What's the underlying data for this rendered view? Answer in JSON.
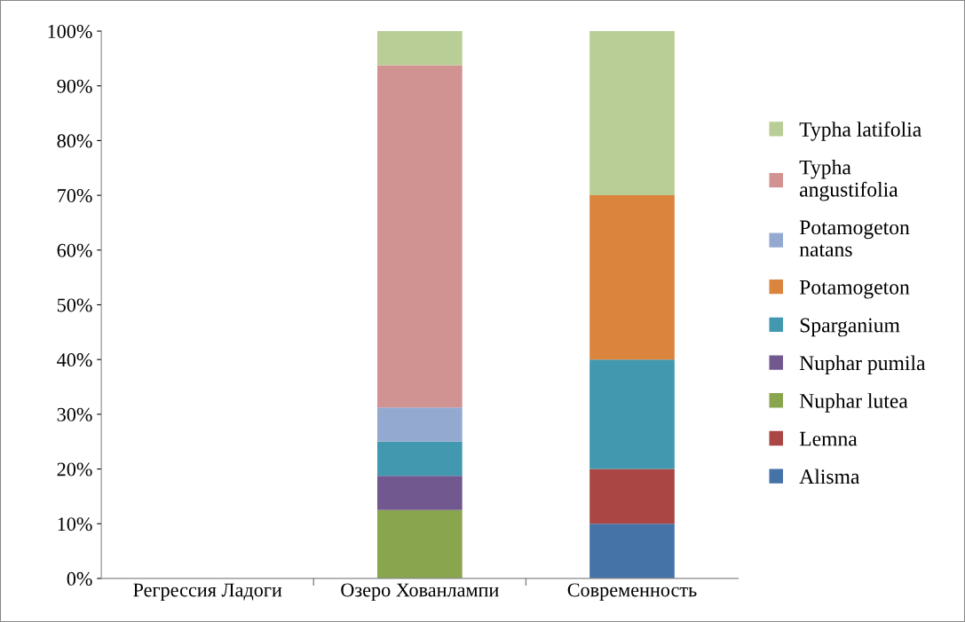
{
  "chart_data": {
    "type": "bar",
    "stacked": true,
    "categories": [
      "Регрессия Ладоги",
      "Озеро Хованлампи",
      "Современность"
    ],
    "series": [
      {
        "name": "Alisma",
        "color": "#4572a7",
        "values": [
          0,
          0,
          10
        ]
      },
      {
        "name": "Lemna",
        "color": "#aa4643",
        "values": [
          0,
          0,
          10
        ]
      },
      {
        "name": "Nuphar lutea",
        "color": "#89a54e",
        "values": [
          0,
          12.5,
          0
        ]
      },
      {
        "name": "Nuphar pumila",
        "color": "#71588f",
        "values": [
          0,
          6.25,
          0
        ]
      },
      {
        "name": "Sparganium",
        "color": "#4198af",
        "values": [
          0,
          6.25,
          20
        ]
      },
      {
        "name": "Potamogeton",
        "color": "#db843d",
        "values": [
          0,
          0,
          30
        ]
      },
      {
        "name": "Potamogeton natans",
        "color": "#93a9cf",
        "values": [
          0,
          6.25,
          0
        ]
      },
      {
        "name": "Typha angustifolia",
        "color": "#d19392",
        "values": [
          0,
          62.5,
          0
        ]
      },
      {
        "name": "Typha latifolia",
        "color": "#b9cd96",
        "values": [
          0,
          6.25,
          30
        ]
      }
    ],
    "ylim": [
      0,
      100
    ],
    "yticks": [
      {
        "value": 0,
        "label": "0%"
      },
      {
        "value": 10,
        "label": "10%"
      },
      {
        "value": 20,
        "label": "20%"
      },
      {
        "value": 30,
        "label": "30%"
      },
      {
        "value": 40,
        "label": "40%"
      },
      {
        "value": 50,
        "label": "50%"
      },
      {
        "value": 60,
        "label": "60%"
      },
      {
        "value": 70,
        "label": "70%"
      },
      {
        "value": 80,
        "label": "80%"
      },
      {
        "value": 90,
        "label": "90%"
      },
      {
        "value": 100,
        "label": "100%"
      }
    ],
    "grid": false,
    "legend": "right"
  }
}
